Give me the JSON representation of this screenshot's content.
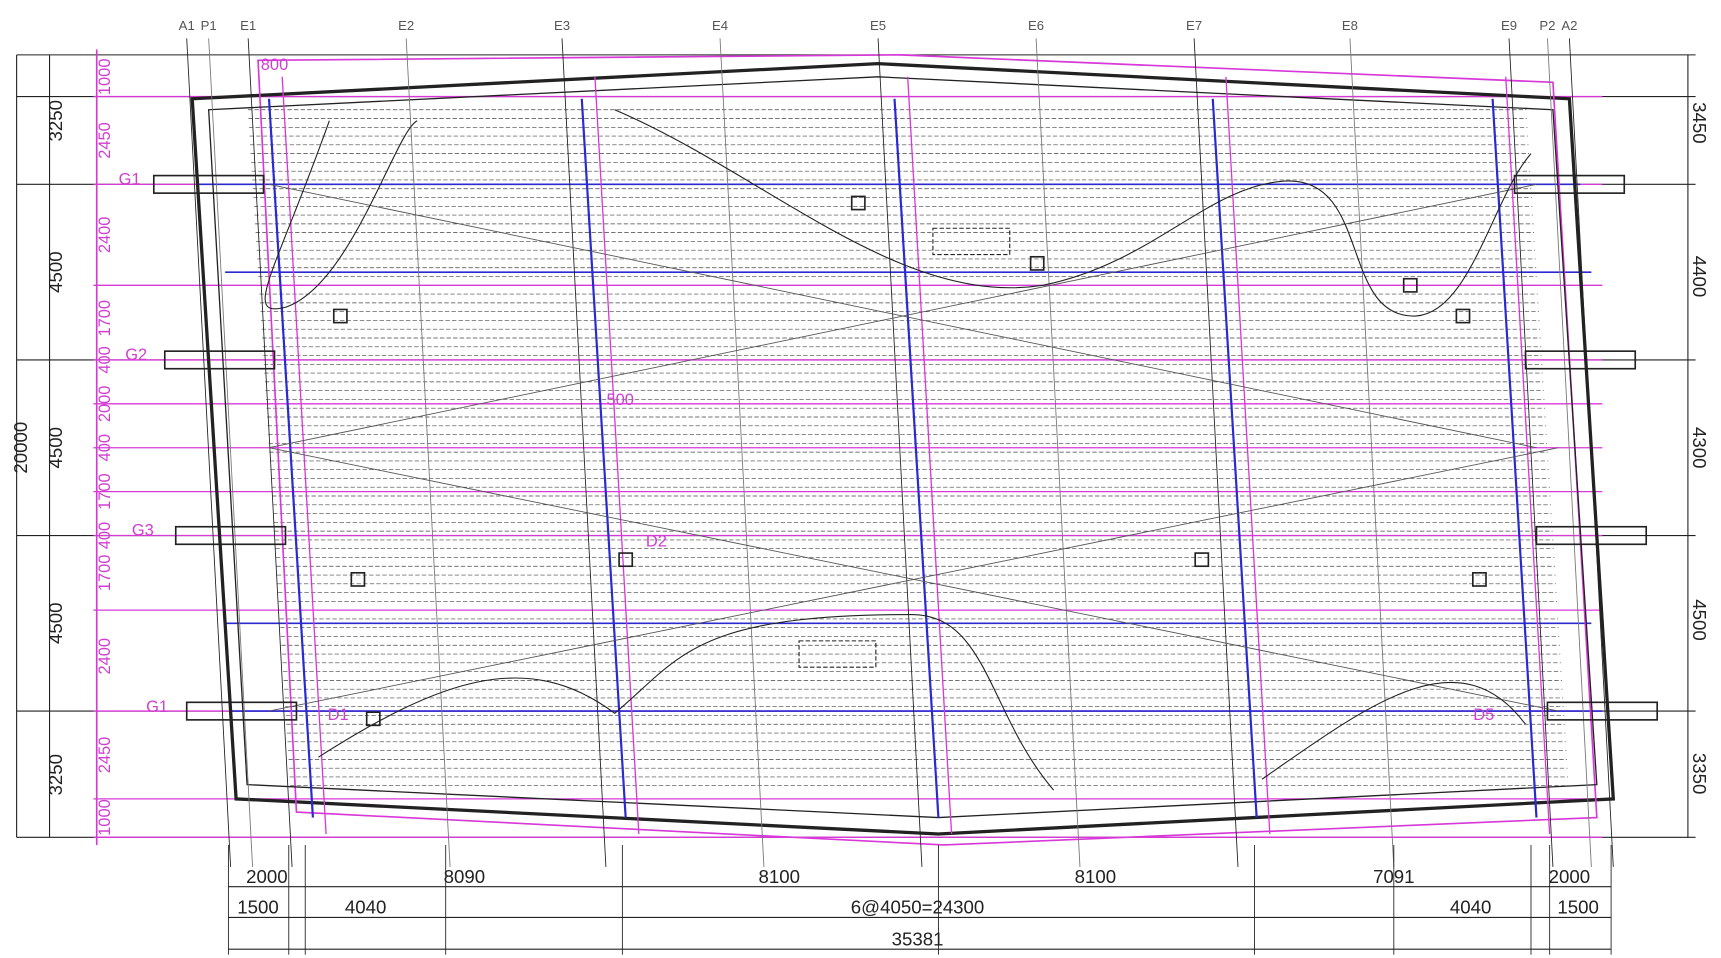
{
  "grid_labels": [
    "A1",
    "P1",
    "E1",
    "E2",
    "E3",
    "E4",
    "E5",
    "E6",
    "E7",
    "E8",
    "E9",
    "P2",
    "A2"
  ],
  "left_dims": [
    "3250",
    "4500",
    "4500",
    "4500",
    "3250"
  ],
  "left_total": "20000",
  "pink_dims": [
    "1000",
    "2450",
    "2400",
    "1700",
    "400",
    "2000",
    "400",
    "1700",
    "400",
    "1700",
    "2400",
    "2450",
    "1000"
  ],
  "right_dims": [
    "3450",
    "4400",
    "4300",
    "4500",
    "3350"
  ],
  "bottom_row1": [
    "2000",
    "8090",
    "8100",
    "8100",
    "7091",
    "2000"
  ],
  "bottom_row2": [
    "1500",
    "4040",
    "6@4050=24300",
    "4040",
    "1500"
  ],
  "bottom_total": "35381",
  "tags": [
    "G1",
    "G2",
    "G3",
    "G1",
    "D1",
    "D2",
    "D5",
    "800",
    "500"
  ]
}
